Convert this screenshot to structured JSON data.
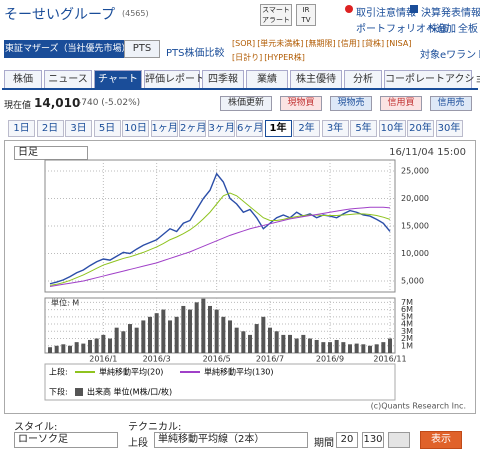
{
  "header": {
    "title": "そーせいグループ",
    "code": "(4565)",
    "alert_button": "スマートアラート",
    "tv_button": "IR TV",
    "links": [
      "取引注意情報",
      "決算発表情報",
      "ポートフォリオへ追加",
      "株価",
      "全板"
    ]
  },
  "market": {
    "tabs": [
      "東証マザーズ（当社優先市場）",
      "PTS"
    ],
    "pts_compare": "PTS株価比較",
    "badges_line1": [
      "[SOR]",
      "[単元未満株]",
      "[無期限]",
      "[信用]",
      "[貸株]",
      "[NISA]"
    ],
    "badges_line2": [
      "[日計り]",
      "[HYPER株]"
    ],
    "warrant": "対象eワラント"
  },
  "tabs": [
    "株価",
    "ニュース",
    "チャート",
    "評価レポート",
    "四季報",
    "業績",
    "株主優待",
    "分析",
    "コーポレートアクション"
  ],
  "quote": {
    "label": "現在値",
    "price": "14,010",
    "change": "-740 (-5.02%)",
    "buttons": [
      "株価更新",
      "現物買",
      "現物売",
      "信用買",
      "信用売"
    ]
  },
  "periods": [
    "1日",
    "2日",
    "3日",
    "5日",
    "10日",
    "1ヶ月",
    "2ヶ月",
    "3ヶ月",
    "6ヶ月",
    "1年",
    "2年",
    "3年",
    "5年",
    "10年",
    "20年",
    "30年"
  ],
  "chart_panel": {
    "interval": "日足",
    "timestamp": "16/11/04 15:00",
    "credit": "(c)Quants Research Inc."
  },
  "chart_data": [
    {
      "type": "line",
      "legend_label": "上段:",
      "categories": [
        null,
        null,
        null,
        null,
        null,
        null,
        null,
        null,
        "2016/1",
        null,
        null,
        null,
        null,
        null,
        null,
        null,
        "2016/3",
        null,
        null,
        null,
        null,
        null,
        null,
        null,
        null,
        "2016/5",
        null,
        null,
        null,
        null,
        null,
        null,
        null,
        "2016/7",
        null,
        null,
        null,
        null,
        null,
        null,
        null,
        null,
        "2016/9",
        null,
        null,
        null,
        null,
        null,
        null,
        null,
        null,
        "2016/11"
      ],
      "series": [
        {
          "color": "#2b4ea8",
          "values": [
            4500,
            4800,
            5200,
            5800,
            6500,
            7000,
            7800,
            8500,
            9000,
            8800,
            9500,
            10200,
            10000,
            10800,
            11500,
            12000,
            12500,
            13500,
            14500,
            14000,
            15500,
            16000,
            18000,
            20000,
            21500,
            24500,
            23000,
            20000,
            19000,
            17500,
            18000,
            16500,
            14500,
            15500,
            16500,
            17000,
            16500,
            17500,
            16800,
            17200,
            16500,
            17000,
            16800,
            16500,
            17200,
            17800,
            17500,
            17000,
            16800,
            16200,
            15500,
            14010
          ]
        },
        {
          "name": "単純移動平均(20)",
          "color": "#8fc31f",
          "values": [
            4200,
            4400,
            4700,
            5100,
            5600,
            6100,
            6700,
            7300,
            7900,
            8300,
            8700,
            9100,
            9400,
            9800,
            10200,
            10700,
            11200,
            11800,
            12500,
            13000,
            13600,
            14300,
            15200,
            16300,
            17500,
            19000,
            20500,
            21000,
            20500,
            19500,
            18500,
            17500,
            16500,
            16000,
            16000,
            16200,
            16500,
            16700,
            16900,
            17000,
            17000,
            16900,
            16900,
            16900,
            17000,
            17100,
            17200,
            17200,
            17100,
            16900,
            16600,
            16200
          ]
        },
        {
          "name": "単純移動平均(130)",
          "color": "#a040c8",
          "values": [
            4000,
            4200,
            4400,
            4600,
            4800,
            5000,
            5300,
            5600,
            5900,
            6200,
            6500,
            6800,
            7100,
            7400,
            7700,
            8000,
            8300,
            8700,
            9100,
            9500,
            9900,
            10300,
            10800,
            11300,
            11800,
            12300,
            12800,
            13300,
            13700,
            14100,
            14500,
            14800,
            15100,
            15400,
            15700,
            16000,
            16300,
            16500,
            16700,
            16900,
            17100,
            17300,
            17500,
            17700,
            17900,
            18100,
            18200,
            18300,
            18400,
            18400,
            18400,
            18300
          ]
        }
      ],
      "ylim": [
        3000,
        27000
      ],
      "yticks": [
        {
          "value": 5000,
          "label": "5,000"
        },
        {
          "value": 10000,
          "label": "10,000"
        },
        {
          "value": 15000,
          "label": "15,000"
        },
        {
          "value": 20000,
          "label": "20,000"
        },
        {
          "value": 25000,
          "label": "25,000"
        }
      ],
      "grid": true
    },
    {
      "type": "bar",
      "unit_label": "単位: M",
      "legend_label": "下段:",
      "series": [
        {
          "name": "出来高 単位(M株/口/枚)",
          "color": "#555555",
          "values": [
            0.8,
            1,
            1.2,
            1,
            1.5,
            1.3,
            1.8,
            2,
            2.5,
            2,
            3.5,
            3,
            4,
            3.5,
            4.5,
            5,
            5.5,
            6,
            4.5,
            5,
            6.5,
            6,
            7,
            7.5,
            6.5,
            6,
            5,
            4.5,
            3.5,
            3,
            2.5,
            4,
            5,
            3.5,
            3,
            2.5,
            2.5,
            2,
            2.5,
            2,
            1.8,
            1.5,
            1.5,
            1.8,
            1.5,
            1.2,
            1.3,
            1.2,
            1,
            1.2,
            1.5,
            2
          ]
        }
      ],
      "ylim": [
        0,
        7.6
      ],
      "yticks": [
        {
          "value": 1,
          "label": "1M"
        },
        {
          "value": 2,
          "label": "2M"
        },
        {
          "value": 3,
          "label": "3M"
        },
        {
          "value": 4,
          "label": "4M"
        },
        {
          "value": 5,
          "label": "5M"
        },
        {
          "value": 6,
          "label": "6M"
        },
        {
          "value": 7,
          "label": "7M"
        }
      ],
      "grid": true
    }
  ],
  "controls": {
    "style_label": "スタイル:",
    "style_value": "ローソク足",
    "technical_label": "テクニカル:",
    "technical_position": "上段",
    "technical_value": "単純移動平均線（2本）",
    "period_label": "期間",
    "period_values": [
      "20",
      "130"
    ],
    "submit": "表示"
  }
}
